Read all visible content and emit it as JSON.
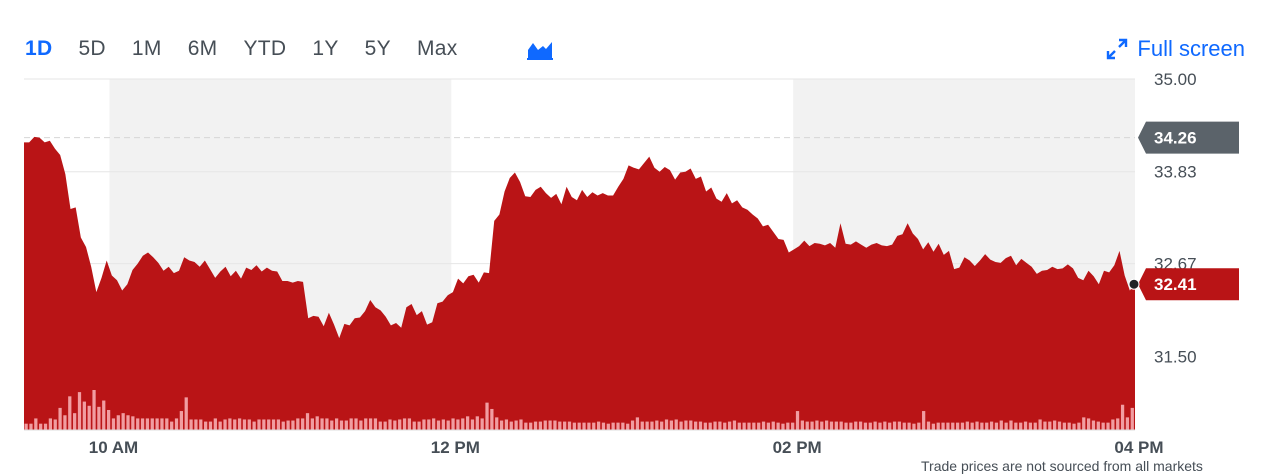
{
  "range_tabs": [
    {
      "label": "1D",
      "active": true
    },
    {
      "label": "5D",
      "active": false
    },
    {
      "label": "1M",
      "active": false
    },
    {
      "label": "6M",
      "active": false
    },
    {
      "label": "YTD",
      "active": false
    },
    {
      "label": "1Y",
      "active": false
    },
    {
      "label": "5Y",
      "active": false
    },
    {
      "label": "Max",
      "active": false
    }
  ],
  "chart_type_icon": "mountain-chart-icon",
  "fullscreen": {
    "label": "Full screen",
    "icon": "expand-arrows-icon"
  },
  "footnote": "Trade prices are not sourced from all markets",
  "colors": {
    "accent": "#0f69ff",
    "area": "#b91416",
    "volume": "#f19da1",
    "shade": "#f2f2f2",
    "prev_close_badge": "#5b636a",
    "grid": "#e6e6e6"
  },
  "chart_data": {
    "type": "area",
    "title": "",
    "xlabel": "",
    "ylabel": "",
    "x_range": [
      "09:30",
      "16:00"
    ],
    "ylim": [
      30.57,
      35.0
    ],
    "y_ticks": [
      {
        "value": 35.0,
        "label": "35.00"
      },
      {
        "value": 33.83,
        "label": "33.83"
      },
      {
        "value": 32.67,
        "label": "32.67"
      },
      {
        "value": 31.5,
        "label": "31.50"
      }
    ],
    "x_ticks": [
      {
        "time": "10:00",
        "label": "10 AM"
      },
      {
        "time": "12:00",
        "label": "12 PM"
      },
      {
        "time": "14:00",
        "label": "02 PM"
      },
      {
        "time": "16:00",
        "label": "04 PM"
      }
    ],
    "shaded_hours": [
      [
        "10:00",
        "12:00"
      ],
      [
        "14:00",
        "16:00"
      ]
    ],
    "previous_close": {
      "value": 34.26,
      "label": "34.26"
    },
    "last_price": {
      "value": 32.41,
      "label": "32.41"
    },
    "series": [
      {
        "values": [
          34.2,
          34.2,
          34.27,
          34.26,
          34.2,
          34.22,
          34.12,
          34.04,
          33.8,
          33.36,
          33.38,
          33.0,
          32.88,
          32.63,
          32.31,
          32.49,
          32.71,
          32.52,
          32.46,
          32.33,
          32.41,
          32.59,
          32.67,
          32.77,
          32.81,
          32.75,
          32.68,
          32.58,
          32.63,
          32.55,
          32.58,
          32.75,
          32.71,
          32.69,
          32.63,
          32.71,
          32.6,
          32.49,
          32.57,
          32.63,
          32.51,
          32.58,
          32.48,
          32.62,
          32.59,
          32.65,
          32.57,
          32.62,
          32.58,
          32.57,
          32.45,
          32.45,
          32.43,
          32.45,
          32.44,
          31.98,
          32.01,
          32.0,
          31.88,
          32.05,
          31.9,
          31.73,
          31.91,
          31.89,
          31.98,
          31.99,
          32.07,
          32.21,
          32.12,
          32.08,
          32.0,
          31.89,
          31.92,
          31.86,
          32.12,
          32.16,
          32.02,
          32.07,
          31.9,
          31.93,
          32.17,
          32.19,
          32.27,
          32.31,
          32.48,
          32.42,
          32.51,
          32.53,
          32.43,
          32.56,
          32.55,
          33.21,
          33.29,
          33.58,
          33.75,
          33.82,
          33.7,
          33.52,
          33.51,
          33.6,
          33.64,
          33.56,
          33.5,
          33.55,
          33.42,
          33.64,
          33.51,
          33.47,
          33.6,
          33.51,
          33.57,
          33.53,
          33.56,
          33.53,
          33.53,
          33.64,
          33.74,
          33.91,
          33.88,
          33.86,
          33.94,
          34.02,
          33.88,
          33.83,
          33.89,
          33.85,
          33.73,
          33.82,
          33.83,
          33.87,
          33.74,
          33.77,
          33.58,
          33.63,
          33.49,
          33.45,
          33.56,
          33.43,
          33.47,
          33.38,
          33.35,
          33.29,
          33.24,
          33.14,
          33.16,
          33.07,
          32.98,
          32.97,
          32.81,
          32.85,
          32.89,
          32.96,
          32.89,
          32.93,
          32.92,
          32.9,
          32.93,
          32.87,
          33.18,
          32.92,
          32.91,
          32.95,
          32.91,
          32.87,
          32.91,
          32.93,
          32.9,
          32.89,
          32.91,
          33.02,
          33.04,
          33.18,
          33.05,
          32.98,
          32.85,
          32.94,
          32.82,
          32.92,
          32.78,
          32.83,
          32.6,
          32.62,
          32.75,
          32.71,
          32.64,
          32.71,
          32.79,
          32.72,
          32.69,
          32.68,
          32.74,
          32.77,
          32.65,
          32.73,
          32.68,
          32.63,
          32.54,
          32.58,
          32.59,
          32.63,
          32.6,
          32.61,
          32.66,
          32.61,
          32.49,
          32.46,
          32.58,
          32.51,
          32.41,
          32.58,
          32.56,
          32.65,
          32.83,
          32.52,
          32.33,
          32.41
        ]
      }
    ],
    "volume": {
      "values": [
        6,
        6,
        11,
        6,
        6,
        11,
        10,
        21,
        14,
        32,
        16,
        36,
        27,
        23,
        38,
        22,
        28,
        19,
        11,
        14,
        16,
        14,
        13,
        11,
        11,
        11,
        11,
        11,
        11,
        11,
        8,
        11,
        18,
        31,
        10,
        10,
        10,
        8,
        8,
        11,
        8,
        10,
        11,
        10,
        11,
        10,
        10,
        8,
        10,
        10,
        10,
        10,
        10,
        8,
        9,
        9,
        11,
        11,
        16,
        11,
        13,
        11,
        11,
        9,
        11,
        9,
        9,
        11,
        11,
        9,
        11,
        11,
        11,
        8,
        8,
        10,
        9,
        10,
        11,
        11,
        8,
        8,
        10,
        10,
        11,
        9,
        10,
        9,
        11,
        10,
        11,
        13,
        10,
        13,
        11,
        26,
        20,
        12,
        9,
        10,
        8,
        9,
        10,
        7,
        7,
        8,
        8,
        9,
        9,
        9,
        8,
        8,
        8,
        7,
        7,
        7,
        7,
        7,
        8,
        7,
        6,
        7,
        7,
        7,
        6,
        9,
        12,
        8,
        8,
        8,
        9,
        8,
        10,
        9,
        10,
        8,
        9,
        9,
        8,
        8,
        7,
        7,
        8,
        8,
        7,
        8,
        9,
        7,
        7,
        7,
        7,
        7,
        8,
        7,
        8,
        7,
        6,
        7,
        7,
        18,
        9,
        8,
        8,
        9,
        8,
        9,
        8,
        8,
        8,
        7,
        7,
        8,
        8,
        7,
        7,
        8,
        7,
        8,
        7,
        8,
        8,
        7,
        7,
        6,
        7,
        18,
        8,
        6,
        7,
        7,
        7,
        7,
        7,
        7,
        8,
        7,
        8,
        7,
        7,
        8,
        7,
        9,
        7,
        9,
        7,
        7,
        8,
        7,
        7,
        10,
        8,
        8,
        9,
        8,
        7,
        7,
        6,
        7,
        12,
        11,
        9,
        8,
        7,
        7,
        10,
        11,
        24,
        12,
        21
      ]
    }
  }
}
